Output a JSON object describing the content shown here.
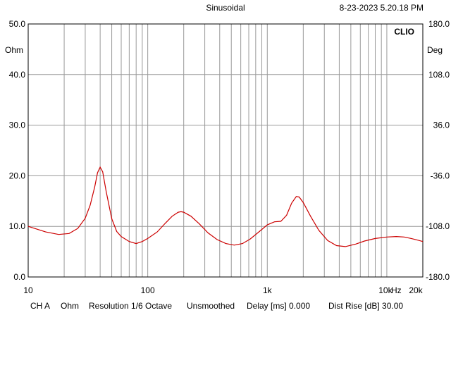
{
  "header": {
    "mode": "Sinusoidal",
    "datetime": "8-23-2023 5.20.18 PM",
    "brand": "CLIO"
  },
  "footer": {
    "channel": "CH A",
    "unit": "Ohm",
    "resolution": "Resolution 1/6 Octave",
    "smoothing": "Unsmoothed",
    "delay": "Delay [ms] 0.000",
    "dist_rise": "Dist Rise [dB] 30.00"
  },
  "chart_data": {
    "type": "line",
    "xscale": "log",
    "xlim": [
      10,
      20000
    ],
    "ylim": [
      0,
      50
    ],
    "y2lim": [
      -180,
      180
    ],
    "grid": true,
    "ylabel": "Ohm",
    "y2label": "Deg",
    "xlabel": "Hz",
    "xtick_labels": [
      "10",
      "100",
      "1k",
      "10k",
      "20k"
    ],
    "ytick_labels": [
      "0.0",
      "10.0",
      "20.0",
      "30.0",
      "40.0",
      "50.0"
    ],
    "y2tick_labels": [
      "-180.0",
      "-108.0",
      "-36.0",
      "36.0",
      "108.0",
      "180.0"
    ],
    "colors": {
      "series": "#cc0000",
      "grid": "#999999"
    },
    "series": [
      {
        "x": [
          10,
          14,
          18,
          22,
          26,
          30,
          33,
          36,
          38,
          40,
          42,
          45,
          50,
          55,
          60,
          70,
          80,
          90,
          100,
          120,
          140,
          160,
          180,
          190,
          200,
          230,
          270,
          320,
          380,
          450,
          530,
          620,
          720,
          850,
          1000,
          1150,
          1300,
          1450,
          1600,
          1750,
          1850,
          2000,
          2300,
          2700,
          3200,
          3800,
          4500,
          5500,
          6500,
          8000,
          10000,
          12000,
          14000,
          16000,
          18000,
          20000
        ],
        "y": [
          10.0,
          8.9,
          8.4,
          8.6,
          9.6,
          11.6,
          14.2,
          17.8,
          20.6,
          21.7,
          20.8,
          16.8,
          11.5,
          9.0,
          8.0,
          7.0,
          6.6,
          7.0,
          7.6,
          8.9,
          10.6,
          12.0,
          12.8,
          12.9,
          12.8,
          12.0,
          10.5,
          8.7,
          7.4,
          6.6,
          6.3,
          6.6,
          7.5,
          8.9,
          10.3,
          10.9,
          11.0,
          12.2,
          14.6,
          15.9,
          15.8,
          14.7,
          12.0,
          9.2,
          7.2,
          6.2,
          6.0,
          6.5,
          7.1,
          7.6,
          7.9,
          8.0,
          7.9,
          7.6,
          7.3,
          7.0
        ]
      }
    ]
  }
}
